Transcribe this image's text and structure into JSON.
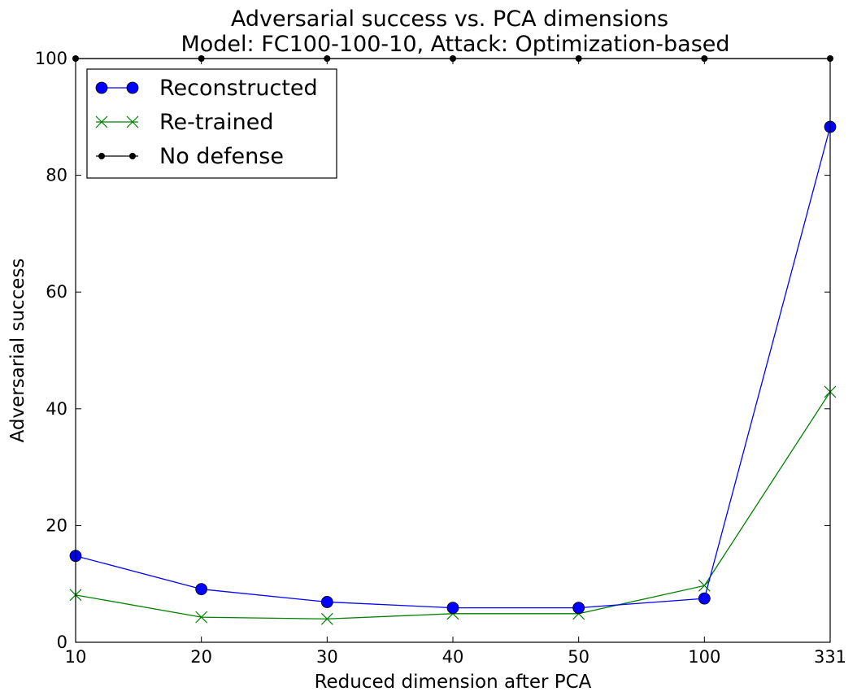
{
  "chart_data": {
    "type": "line",
    "title": "Adversarial success vs. PCA dimensions",
    "subtitle": "Model: FC100-100-10, Attack: Optimization-based",
    "xlabel": "Reduced dimension after PCA",
    "ylabel": "Adversarial success",
    "categories": [
      "10",
      "20",
      "30",
      "40",
      "50",
      "100",
      "331"
    ],
    "ylim": [
      0,
      100
    ],
    "yticks": [
      "0",
      "20",
      "40",
      "60",
      "80",
      "100"
    ],
    "grid": false,
    "legend_position": "top-left",
    "series": [
      {
        "name": "Reconstructed",
        "color": "#0000ff",
        "marker": "circle",
        "values": [
          14.8,
          9.1,
          6.9,
          5.9,
          5.9,
          7.5,
          88.3
        ]
      },
      {
        "name": "Re-trained",
        "color": "#008000",
        "marker": "x",
        "values": [
          8.1,
          4.3,
          4.0,
          4.9,
          4.9,
          9.7,
          42.9
        ]
      },
      {
        "name": "No defense",
        "color": "#000000",
        "marker": "point",
        "values": [
          100,
          100,
          100,
          100,
          100,
          100,
          100
        ]
      }
    ]
  }
}
